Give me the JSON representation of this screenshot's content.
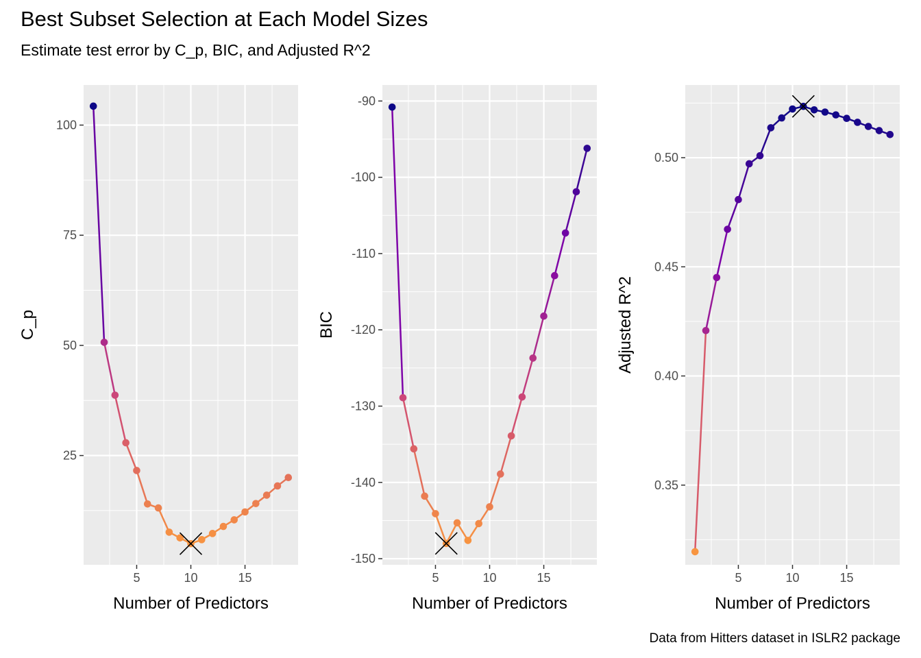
{
  "title": "Best Subset Selection at Each Model Sizes",
  "subtitle": "Estimate test error by C_p, BIC, and Adjusted R^2",
  "caption": "Data from Hitters dataset in ISLR2 package",
  "chart_data": [
    {
      "type": "line",
      "xlabel": "Number of Predictors",
      "ylabel": "C_p",
      "x": [
        1,
        2,
        3,
        4,
        5,
        6,
        7,
        8,
        9,
        10,
        11,
        12,
        13,
        14,
        15,
        16,
        17,
        18,
        19
      ],
      "values": [
        104.3,
        50.7,
        38.7,
        27.9,
        21.6,
        14.0,
        13.1,
        7.6,
        6.3,
        5.0,
        5.9,
        7.3,
        8.9,
        10.4,
        12.2,
        14.1,
        16.0,
        18.1,
        20.0
      ],
      "xlim": [
        0.1,
        19.9
      ],
      "ylim": [
        0.2,
        109.1
      ],
      "xticks": [
        5,
        10,
        15
      ],
      "yticks": [
        25,
        50,
        75,
        100
      ],
      "optimum_x": 10,
      "grid": true,
      "colors": [
        "#0d0887",
        "#9c179e",
        "#cc4778",
        "#e66c5c",
        "#f68f44",
        "#fdb42f",
        "#fca636"
      ]
    },
    {
      "type": "line",
      "xlabel": "Number of Predictors",
      "ylabel": "BIC",
      "x": [
        1,
        2,
        3,
        4,
        5,
        6,
        7,
        8,
        9,
        10,
        11,
        12,
        13,
        14,
        15,
        16,
        17,
        18,
        19
      ],
      "values": [
        -90.8,
        -128.9,
        -135.6,
        -141.8,
        -144.1,
        -148.0,
        -145.3,
        -147.6,
        -145.4,
        -143.2,
        -138.9,
        -133.9,
        -128.8,
        -123.7,
        -118.2,
        -112.9,
        -107.3,
        -101.9,
        -96.2
      ],
      "xlim": [
        0.1,
        19.9
      ],
      "ylim": [
        -150.8,
        -87.9
      ],
      "xticks": [
        5,
        10,
        15
      ],
      "yticks": [
        -150,
        -140,
        -130,
        -120,
        -110,
        -100,
        -90
      ],
      "optimum_x": 6,
      "grid": true
    },
    {
      "type": "line",
      "xlabel": "Number of Predictors",
      "ylabel": "Adjusted R^2",
      "x": [
        1,
        2,
        3,
        4,
        5,
        6,
        7,
        8,
        9,
        10,
        11,
        12,
        13,
        14,
        15,
        16,
        17,
        18,
        19
      ],
      "values": [
        0.3195,
        0.4208,
        0.4451,
        0.4672,
        0.4808,
        0.4972,
        0.5009,
        0.5137,
        0.5182,
        0.5223,
        0.5235,
        0.5219,
        0.5209,
        0.5196,
        0.518,
        0.5162,
        0.5143,
        0.5124,
        0.5106
      ],
      "xlim": [
        0.1,
        19.9
      ],
      "ylim": [
        0.3135,
        0.5333
      ],
      "xticks": [
        5,
        10,
        15
      ],
      "yticks": [
        0.35,
        0.4,
        0.45,
        0.5
      ],
      "ytick_labels": [
        "0.35",
        "0.40",
        "0.45",
        "0.50"
      ],
      "optimum_x": 11,
      "grid": true
    }
  ]
}
